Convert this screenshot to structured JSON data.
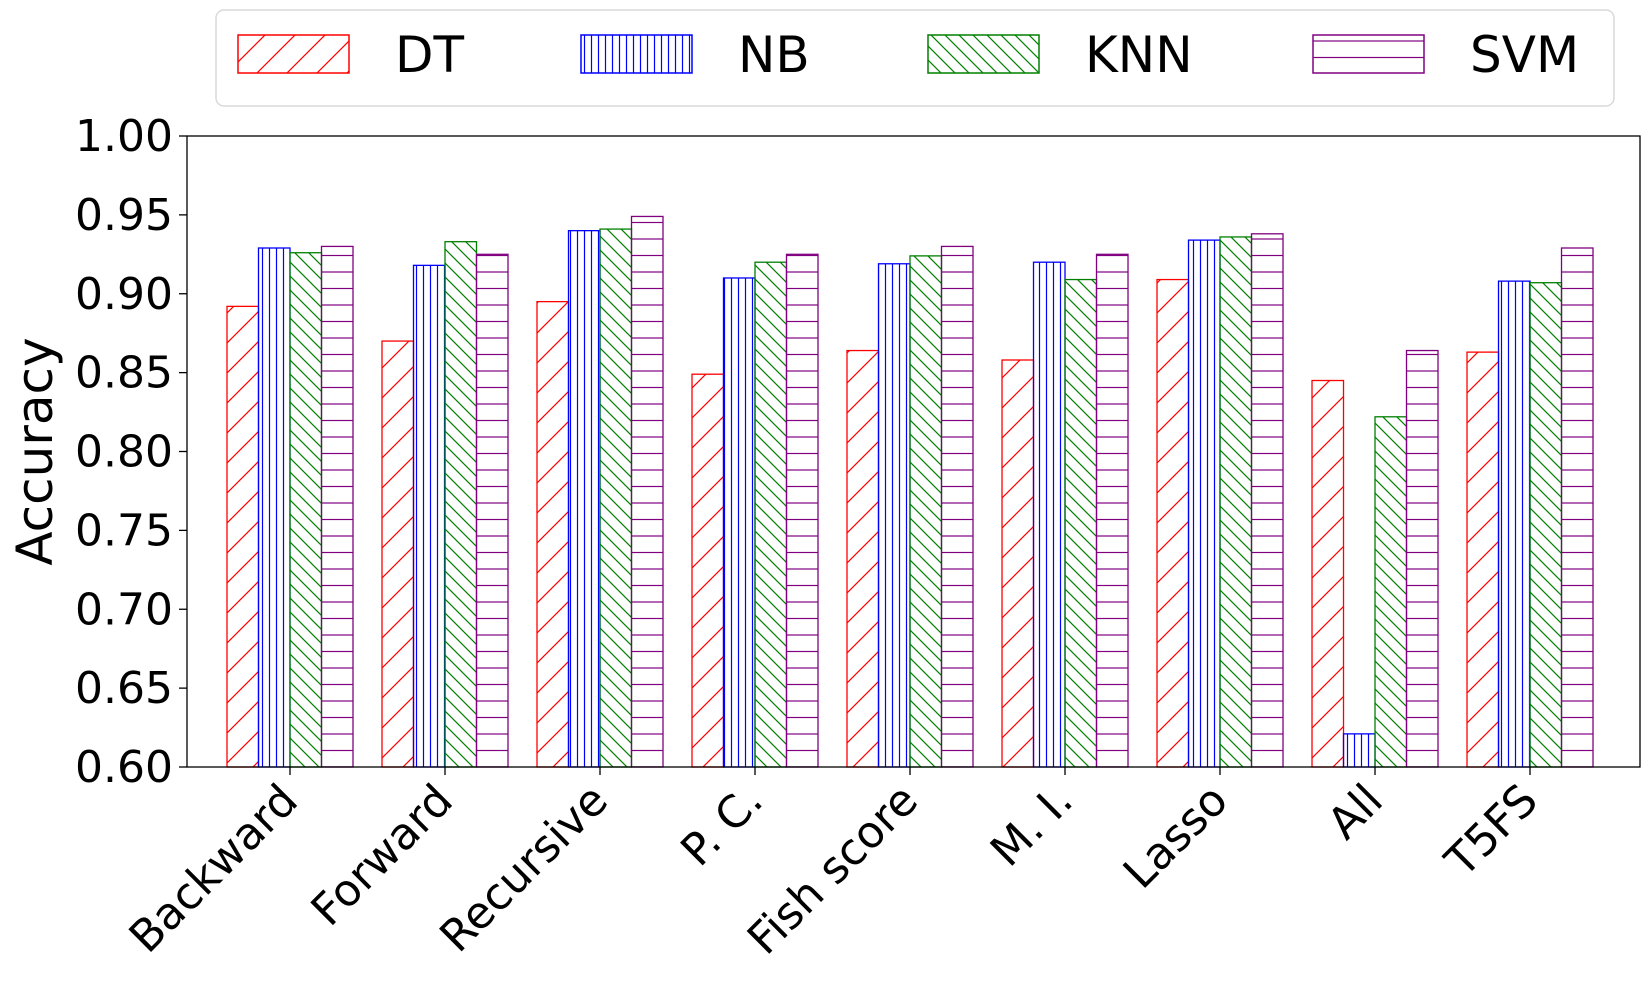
{
  "chart_data": {
    "type": "bar",
    "title": "",
    "xlabel": "",
    "ylabel": "Accuracy",
    "ylim": [
      0.6,
      1.0
    ],
    "yticks": [
      "0.60",
      "0.65",
      "0.70",
      "0.75",
      "0.80",
      "0.85",
      "0.90",
      "0.95",
      "1.00"
    ],
    "grid": false,
    "legend_position": "top",
    "categories": [
      "Backward",
      "Forward",
      "Recursive",
      "P. C.",
      "Fish score",
      "M. I.",
      "Lasso",
      "All",
      "T5FS"
    ],
    "series": [
      {
        "name": "DT",
        "color": "#ff0000",
        "hatch": "diagonal-forward",
        "values": [
          0.892,
          0.87,
          0.895,
          0.849,
          0.864,
          0.858,
          0.909,
          0.845,
          0.863
        ]
      },
      {
        "name": "NB",
        "color": "#0000ff",
        "hatch": "vertical",
        "values": [
          0.929,
          0.918,
          0.94,
          0.91,
          0.919,
          0.92,
          0.934,
          0.621,
          0.908
        ]
      },
      {
        "name": "KNN",
        "color": "#008000",
        "hatch": "diagonal-backward",
        "values": [
          0.926,
          0.933,
          0.941,
          0.92,
          0.924,
          0.909,
          0.936,
          0.822,
          0.907
        ]
      },
      {
        "name": "SVM",
        "color": "#800080",
        "hatch": "horizontal",
        "values": [
          0.93,
          0.925,
          0.949,
          0.925,
          0.93,
          0.925,
          0.938,
          0.864,
          0.929
        ]
      }
    ]
  }
}
